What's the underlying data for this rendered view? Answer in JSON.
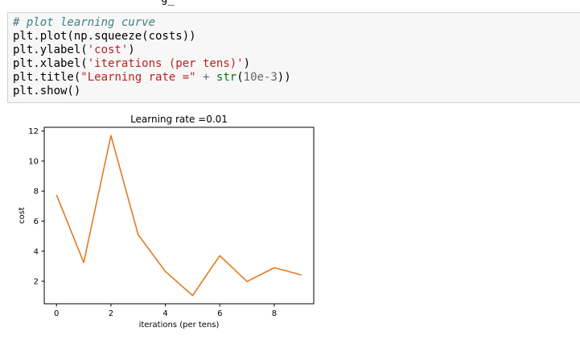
{
  "cell": {
    "top_fragment": "g_",
    "code_lines": [
      [
        {
          "t": "# plot learning curve",
          "c": "c-comment"
        }
      ],
      [
        {
          "t": "plt.plot(np.squeeze(costs))",
          "c": ""
        }
      ],
      [
        {
          "t": "plt.ylabel(",
          "c": ""
        },
        {
          "t": "'cost'",
          "c": "c-string"
        },
        {
          "t": ")",
          "c": ""
        }
      ],
      [
        {
          "t": "plt.xlabel(",
          "c": ""
        },
        {
          "t": "'iterations (per tens)'",
          "c": "c-string"
        },
        {
          "t": ")",
          "c": ""
        }
      ],
      [
        {
          "t": "plt.title(",
          "c": ""
        },
        {
          "t": "\"Learning rate =\"",
          "c": "c-string"
        },
        {
          "t": " ",
          "c": ""
        },
        {
          "t": "+",
          "c": "c-op"
        },
        {
          "t": " ",
          "c": ""
        },
        {
          "t": "str",
          "c": "c-builtin"
        },
        {
          "t": "(",
          "c": ""
        },
        {
          "t": "10e-3",
          "c": "c-op"
        },
        {
          "t": "))",
          "c": ""
        }
      ],
      [
        {
          "t": "plt.show()",
          "c": ""
        }
      ]
    ]
  },
  "chart_data": {
    "type": "line",
    "title": "Learning rate =0.01",
    "xlabel": "iterations (per tens)",
    "ylabel": "cost",
    "x": [
      0,
      1,
      2,
      3,
      4,
      5,
      6,
      7,
      8,
      9
    ],
    "series": [
      {
        "values": [
          7.75,
          3.25,
          11.7,
          5.1,
          2.65,
          1.05,
          3.7,
          1.98,
          2.9,
          2.42
        ],
        "color": "#e07b20"
      }
    ],
    "xticks": [
      "0",
      "2",
      "4",
      "6",
      "8"
    ],
    "yticks": [
      "2",
      "4",
      "6",
      "8",
      "10",
      "12"
    ],
    "xlim": [
      -0.45,
      9.45
    ],
    "ylim": [
      0.5,
      12.25
    ],
    "grid": false
  }
}
